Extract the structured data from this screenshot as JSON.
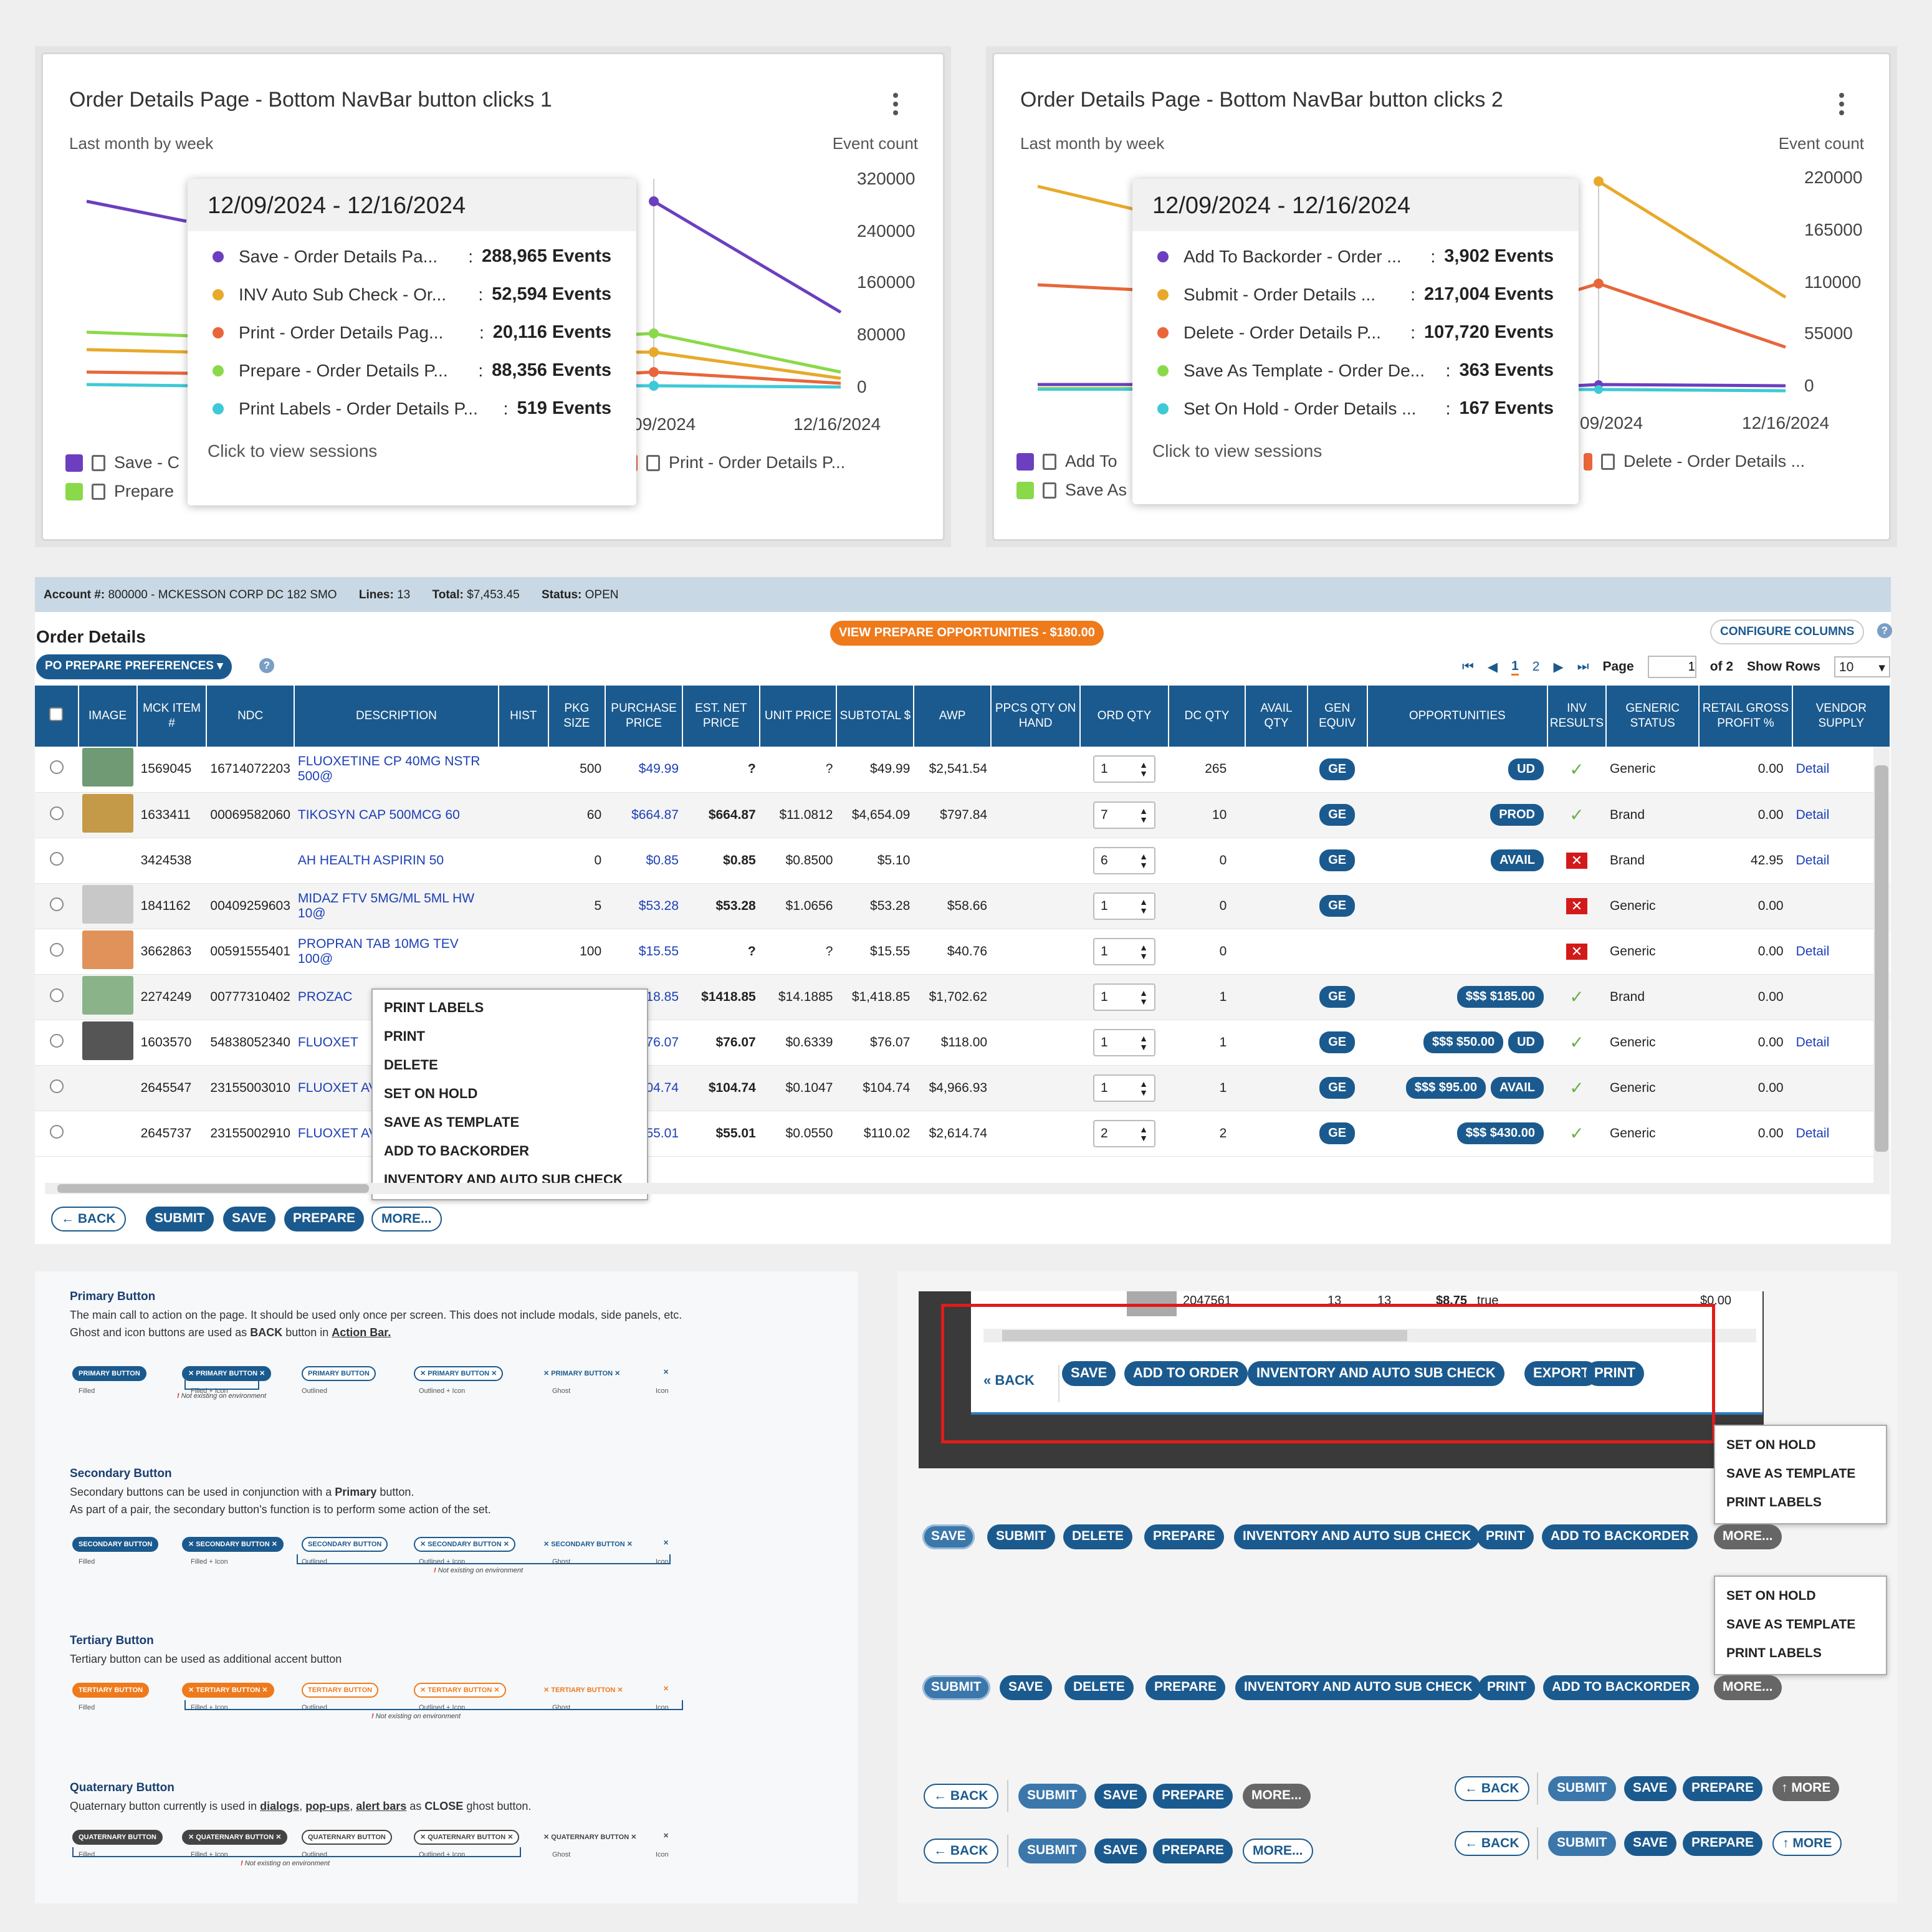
{
  "chart1": {
    "title": "Order Details Page - Bottom NavBar button clicks 1",
    "subtitle": "Last month by week",
    "right_label": "Event count",
    "y_ticks": [
      "320000",
      "240000",
      "160000",
      "80000",
      "0"
    ],
    "x_ticks": [
      "09/2024",
      "12/16/2024"
    ],
    "tooltip": {
      "header": "12/09/2024 - 12/16/2024",
      "rows": [
        {
          "name": "Save - Order Details Pa...",
          "sep": ":",
          "value": "288,965 Events",
          "color": "#6b3fbf"
        },
        {
          "name": "INV Auto Sub Check - Or...",
          "sep": ":",
          "value": "52,594 Events",
          "color": "#e8a92a"
        },
        {
          "name": "Print - Order Details Pag...",
          "sep": ":",
          "value": "20,116 Events",
          "color": "#e8663a"
        },
        {
          "name": "Prepare - Order Details P...",
          "sep": ":",
          "value": "88,356 Events",
          "color": "#8ad94a"
        },
        {
          "name": "Print Labels - Order Details P...",
          "sep": ":",
          "value": "519 Events",
          "color": "#3ec9d6"
        }
      ],
      "footer": "Click to view sessions"
    },
    "legend": [
      "Save - C",
      "Prepare",
      "Print - Order Details P..."
    ]
  },
  "chart2": {
    "title": "Order Details Page - Bottom NavBar button clicks 2",
    "subtitle": "Last month by week",
    "right_label": "Event count",
    "y_ticks": [
      "220000",
      "165000",
      "110000",
      "55000",
      "0"
    ],
    "x_ticks": [
      "09/2024",
      "12/16/2024"
    ],
    "tooltip": {
      "header": "12/09/2024 - 12/16/2024",
      "rows": [
        {
          "name": "Add To Backorder - Order ...",
          "sep": ":",
          "value": "3,902 Events",
          "color": "#6b3fbf"
        },
        {
          "name": "Submit - Order Details ...",
          "sep": ":",
          "value": "217,004 Events",
          "color": "#e8a92a"
        },
        {
          "name": "Delete - Order Details P...",
          "sep": ":",
          "value": "107,720 Events",
          "color": "#e8663a"
        },
        {
          "name": "Save As Template - Order De...",
          "sep": ":",
          "value": "363 Events",
          "color": "#8ad94a"
        },
        {
          "name": "Set On Hold - Order Details ...",
          "sep": ":",
          "value": "167 Events",
          "color": "#3ec9d6"
        }
      ],
      "footer": "Click to view sessions"
    },
    "legend": [
      "Add To",
      "Save As",
      "Delete - Order Details ..."
    ]
  },
  "order": {
    "account_label": "Account #:",
    "account_value": "800000 - MCKESSON CORP DC 182 SMO",
    "lines_label": "Lines:",
    "lines_value": "13",
    "total_label": "Total:",
    "total_value": "$7,453.45",
    "status_label": "Status:",
    "status_value": "OPEN",
    "title": "Order Details",
    "prepare_opps": "VIEW PREPARE OPPORTUNITIES - $180.00",
    "configure": "CONFIGURE COLUMNS",
    "po_prefs": "PO PREPARE PREFERENCES",
    "pager": {
      "p1": "1",
      "p2": "2",
      "page_label": "Page",
      "page_value": "1",
      "of": "of 2",
      "show_rows": "Show Rows",
      "rows_value": "10"
    },
    "columns": [
      "IMAGE",
      "MCK ITEM #",
      "NDC",
      "DESCRIPTION",
      "HIST",
      "PKG SIZE",
      "PURCHASE PRICE",
      "EST. NET PRICE",
      "UNIT PRICE",
      "SUBTOTAL $",
      "AWP",
      "PPCS QTY ON HAND",
      "ORD QTY",
      "DC QTY",
      "AVAIL QTY",
      "GEN EQUIV",
      "OPPORTUNITIES",
      "INV RESULTS",
      "GENERIC STATUS",
      "RETAIL GROSS PROFIT %",
      "VENDOR SUPPLY"
    ],
    "rows": [
      {
        "item": "1569045",
        "ndc": "16714072203",
        "desc": "FLUOXETINE CP 40MG NSTR 500@",
        "pkg": "500",
        "pp": "$49.99",
        "enp": "?",
        "up": "?",
        "sub": "$49.99",
        "awp": "$2,541.54",
        "ord": "1",
        "dc": "265",
        "ge": "GE",
        "opp": [
          "UD"
        ],
        "inv": "check",
        "gs": "Generic",
        "rgp": "0.00",
        "vs": "Detail"
      },
      {
        "item": "1633411",
        "ndc": "00069582060",
        "desc": "TIKOSYN CAP 500MCG 60",
        "pkg": "60",
        "pp": "$664.87",
        "enp": "$664.87",
        "up": "$11.0812",
        "sub": "$4,654.09",
        "awp": "$797.84",
        "ord": "7",
        "dc": "10",
        "ge": "GE",
        "opp": [
          "PROD"
        ],
        "inv": "check",
        "gs": "Brand",
        "rgp": "0.00",
        "vs": "Detail"
      },
      {
        "item": "3424538",
        "ndc": "",
        "desc": "AH HEALTH ASPIRIN 50",
        "pkg": "0",
        "pp": "$0.85",
        "enp": "$0.85",
        "up": "$0.8500",
        "sub": "$5.10",
        "awp": "",
        "ord": "6",
        "dc": "0",
        "ge": "GE",
        "opp": [
          "AVAIL"
        ],
        "inv": "x",
        "gs": "Brand",
        "rgp": "42.95",
        "vs": "Detail"
      },
      {
        "item": "1841162",
        "ndc": "00409259603",
        "desc": "MIDAZ FTV 5MG/ML 5ML HW 10@",
        "pkg": "5",
        "pp": "$53.28",
        "enp": "$53.28",
        "up": "$1.0656",
        "sub": "$53.28",
        "awp": "$58.66",
        "ord": "1",
        "dc": "0",
        "ge": "GE",
        "opp": [],
        "inv": "x",
        "gs": "Generic",
        "rgp": "0.00",
        "vs": ""
      },
      {
        "item": "3662863",
        "ndc": "00591555401",
        "desc": "PROPRAN TAB 10MG TEV 100@",
        "pkg": "100",
        "pp": "$15.55",
        "enp": "?",
        "up": "?",
        "sub": "$15.55",
        "awp": "$40.76",
        "ord": "1",
        "dc": "0",
        "ge": "",
        "opp": [],
        "inv": "x",
        "gs": "Generic",
        "rgp": "0.00",
        "vs": "Detail"
      },
      {
        "item": "2274249",
        "ndc": "00777310402",
        "desc": "PROZAC",
        "pkg": "",
        "pp": "$1418.85",
        "enp": "$1418.85",
        "up": "$14.1885",
        "sub": "$1,418.85",
        "awp": "$1,702.62",
        "ord": "1",
        "dc": "1",
        "ge": "GE",
        "opp": [
          "$$$  $185.00"
        ],
        "inv": "check",
        "gs": "Brand",
        "rgp": "0.00",
        "vs": ""
      },
      {
        "item": "1603570",
        "ndc": "54838052340",
        "desc": "FLUOXET",
        "pkg": "",
        "pp": "$76.07",
        "enp": "$76.07",
        "up": "$0.6339",
        "sub": "$76.07",
        "awp": "$118.00",
        "ord": "1",
        "dc": "1",
        "ge": "GE",
        "opp": [
          "$$$  $50.00",
          "UD"
        ],
        "inv": "check",
        "gs": "Generic",
        "rgp": "0.00",
        "vs": "Detail"
      },
      {
        "item": "2645547",
        "ndc": "23155003010",
        "desc": "FLUOXET AVET100",
        "pkg": "",
        "pp": "$104.74",
        "enp": "$104.74",
        "up": "$0.1047",
        "sub": "$104.74",
        "awp": "$4,966.93",
        "ord": "1",
        "dc": "1",
        "ge": "GE",
        "opp": [
          "$$$  $95.00",
          "AVAIL"
        ],
        "inv": "check",
        "gs": "Generic",
        "rgp": "0.00",
        "vs": ""
      },
      {
        "item": "2645737",
        "ndc": "23155002910",
        "desc": "FLUOXET AVET100",
        "pkg": "",
        "pp": "$55.01",
        "enp": "$55.01",
        "up": "$0.0550",
        "sub": "$110.02",
        "awp": "$2,614.74",
        "ord": "2",
        "dc": "2",
        "ge": "GE",
        "opp": [
          "$$$  $430.00"
        ],
        "inv": "check",
        "gs": "Generic",
        "rgp": "0.00",
        "vs": "Detail"
      }
    ],
    "more_menu": [
      "PRINT LABELS",
      "PRINT",
      "DELETE",
      "SET ON HOLD",
      "SAVE AS TEMPLATE",
      "ADD TO BACKORDER",
      "INVENTORY AND AUTO SUB CHECK"
    ],
    "actions": {
      "back": "BACK",
      "submit": "SUBMIT",
      "save": "SAVE",
      "prepare": "PREPARE",
      "more": "MORE..."
    }
  },
  "guide": {
    "primary_title": "Primary Button",
    "primary_desc1": "The main call to action on the page. It should be used only once per screen. This does not include modals, side panels, etc.",
    "primary_desc2": "Ghost and icon buttons are used as",
    "primary_desc2b": "BACK",
    "primary_desc2c": "button in",
    "primary_desc2d": "Action Bar.",
    "secondary_title": "Secondary Button",
    "secondary_desc1": "Secondary buttons can be used in conjunction with a",
    "secondary_desc1b": "Primary",
    "secondary_desc1c": "button.",
    "secondary_desc2": "As part of a pair, the secondary button's function is to perform some action of the set.",
    "tertiary_title": "Tertiary Button",
    "tertiary_desc": "Tertiary button can be used as additional accent button",
    "quaternary_title": "Quaternary Button",
    "quaternary_desc1": "Quaternary button currently is used in",
    "quaternary_links": [
      "dialogs",
      "pop-ups",
      "alert bars"
    ],
    "quaternary_desc2": "as",
    "quaternary_desc3": "CLOSE",
    "quaternary_desc4": "ghost button.",
    "captions": [
      "Filled",
      "Filled + Icon",
      "Outlined",
      "Outlined + Icon",
      "Ghost",
      "Icon"
    ],
    "note": "Not existing on environment",
    "primary_label": "PRIMARY BUTTON",
    "secondary_label": "SECONDARY BUTTON",
    "tertiary_label": "TERTIARY BUTTON",
    "quaternary_label": "QUATERNARY BUTTON"
  },
  "panel": {
    "row_item": "2047561",
    "row_a": "13",
    "row_b": "13",
    "row_price": "$8.75",
    "row_flag": "true",
    "row_total": "$0.00",
    "dark_buttons": [
      "SAVE",
      "ADD TO ORDER",
      "INVENTORY AND AUTO SUB CHECK",
      "EXPORT",
      "PRINT"
    ],
    "back": "BACK",
    "menu_items": [
      "SET ON HOLD",
      "SAVE AS TEMPLATE",
      "PRINT LABELS"
    ],
    "row1": [
      "SAVE",
      "SUBMIT",
      "DELETE",
      "PREPARE",
      "INVENTORY AND AUTO SUB CHECK",
      "PRINT",
      "ADD TO BACKORDER",
      "MORE..."
    ],
    "row2": [
      "SUBMIT",
      "SAVE",
      "DELETE",
      "PREPARE",
      "INVENTORY AND AUTO SUB CHECK",
      "PRINT",
      "ADD TO BACKORDER",
      "MORE..."
    ],
    "bar": {
      "back": "BACK",
      "submit": "SUBMIT",
      "save": "SAVE",
      "prepare": "PREPARE",
      "more": "MORE...",
      "more2": "MORE"
    }
  }
}
